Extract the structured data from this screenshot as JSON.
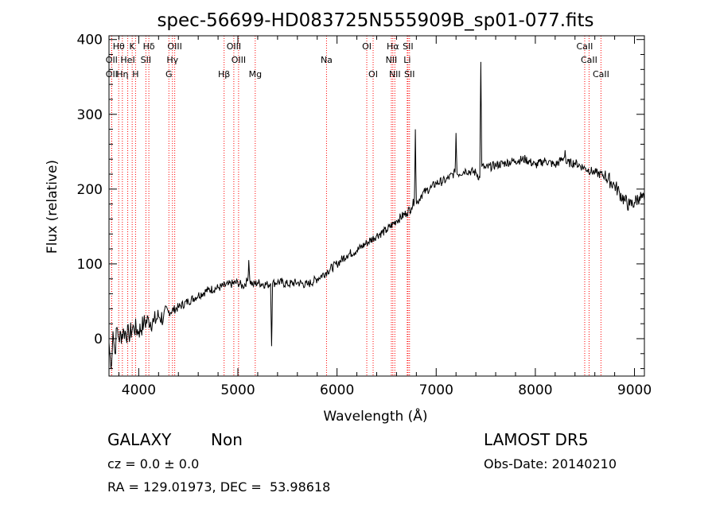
{
  "chart_data": {
    "type": "line",
    "title": "spec-56699-HD083725N555909B_sp01-077.fits",
    "xlabel": "Wavelength (Å)",
    "ylabel": "Flux (relative)",
    "xlim": [
      3700,
      9100
    ],
    "ylim": [
      -50,
      405
    ],
    "xticks": [
      4000,
      5000,
      6000,
      7000,
      8000,
      9000
    ],
    "yticks": [
      0,
      100,
      200,
      300,
      400
    ],
    "grid": false,
    "line_color": "#000000",
    "marker_color": "#ff0000",
    "spectrum": {
      "x": [
        3700,
        3720,
        3740,
        3760,
        3780,
        3800,
        3850,
        3900,
        3950,
        4000,
        4050,
        4100,
        4150,
        4200,
        4250,
        4300,
        4400,
        4500,
        4600,
        4700,
        4800,
        4900,
        5000,
        5050,
        5100,
        5110,
        5120,
        5150,
        5200,
        5300,
        5330,
        5340,
        5350,
        5400,
        5500,
        5600,
        5700,
        5800,
        5900,
        6000,
        6100,
        6200,
        6300,
        6400,
        6500,
        6600,
        6700,
        6750,
        6780,
        6790,
        6800,
        6850,
        6900,
        6950,
        7000,
        7100,
        7190,
        7200,
        7210,
        7300,
        7400,
        7440,
        7450,
        7460,
        7500,
        7600,
        7700,
        7800,
        7900,
        8000,
        8100,
        8200,
        8290,
        8300,
        8310,
        8400,
        8500,
        8600,
        8700,
        8800,
        8850,
        8900,
        8950,
        9000,
        9050,
        9100
      ],
      "y": [
        -5,
        -40,
        10,
        -20,
        15,
        0,
        10,
        5,
        15,
        10,
        20,
        25,
        22,
        30,
        28,
        35,
        42,
        50,
        58,
        65,
        68,
        72,
        75,
        70,
        78,
        105,
        78,
        72,
        75,
        72,
        74,
        -10,
        74,
        76,
        73,
        75,
        72,
        80,
        90,
        100,
        112,
        118,
        128,
        138,
        145,
        158,
        168,
        175,
        185,
        280,
        180,
        192,
        198,
        202,
        208,
        212,
        222,
        275,
        220,
        225,
        222,
        215,
        370,
        230,
        228,
        232,
        235,
        238,
        240,
        232,
        238,
        232,
        242,
        252,
        235,
        235,
        228,
        222,
        218,
        205,
        195,
        185,
        178,
        182,
        190,
        185
      ]
    },
    "lines": [
      {
        "label": "OII",
        "x": 3727,
        "row": 2
      },
      {
        "label": "OII",
        "x": 3727,
        "row": 3
      },
      {
        "label": "Hθ",
        "x": 3798,
        "row": 1
      },
      {
        "label": "Hη",
        "x": 3835,
        "row": 3
      },
      {
        "label": "HeI",
        "x": 3889,
        "row": 2
      },
      {
        "label": "K",
        "x": 3934,
        "row": 1
      },
      {
        "label": "H",
        "x": 3968,
        "row": 3
      },
      {
        "label": "Hδ",
        "x": 4102,
        "row": 1
      },
      {
        "label": "SII",
        "x": 4072,
        "row": 2
      },
      {
        "label": "OIII",
        "x": 4363,
        "row": 1
      },
      {
        "label": "Hγ",
        "x": 4340,
        "row": 2
      },
      {
        "label": "G",
        "x": 4304,
        "row": 3
      },
      {
        "label": "OIII",
        "x": 4959,
        "row": 1
      },
      {
        "label": "OIII",
        "x": 5007,
        "row": 2
      },
      {
        "label": "Hβ",
        "x": 4861,
        "row": 3
      },
      {
        "label": "Mg",
        "x": 5175,
        "row": 3
      },
      {
        "label": "Na",
        "x": 5894,
        "row": 2
      },
      {
        "label": "OI",
        "x": 6300,
        "row": 1
      },
      {
        "label": "OI",
        "x": 6364,
        "row": 3
      },
      {
        "label": "Hα",
        "x": 6563,
        "row": 1
      },
      {
        "label": "NII",
        "x": 6548,
        "row": 2
      },
      {
        "label": "NII",
        "x": 6583,
        "row": 3
      },
      {
        "label": "SII",
        "x": 6716,
        "row": 1
      },
      {
        "label": "Li",
        "x": 6708,
        "row": 2
      },
      {
        "label": "SII",
        "x": 6731,
        "row": 3
      },
      {
        "label": "CaII",
        "x": 8498,
        "row": 1
      },
      {
        "label": "CaII",
        "x": 8542,
        "row": 2
      },
      {
        "label": "CaII",
        "x": 8662,
        "row": 3
      }
    ]
  },
  "info": {
    "object_class": "GALAXY",
    "subclass": "Non",
    "survey": "LAMOST DR5",
    "cz_line": "cz = 0.0 ± 0.0",
    "obs_date": "Obs-Date: 20140210",
    "coords": "RA = 129.01973, DEC =  53.98618"
  }
}
